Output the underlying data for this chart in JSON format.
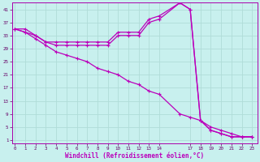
{
  "xlabel": "Windchill (Refroidissement éolien,°C)",
  "background_color": "#c8f0ee",
  "grid_color": "#b0dcd8",
  "line_color": "#bb00bb",
  "x_ticks": [
    0,
    1,
    2,
    3,
    4,
    5,
    6,
    7,
    8,
    9,
    10,
    11,
    12,
    13,
    14,
    17,
    18,
    19,
    20,
    21,
    22,
    23
  ],
  "y_ticks": [
    1,
    5,
    9,
    13,
    17,
    21,
    25,
    29,
    33,
    37,
    41
  ],
  "xlim": [
    -0.3,
    23.5
  ],
  "ylim": [
    0,
    43
  ],
  "line1_x": [
    0,
    1,
    2,
    3,
    4,
    5,
    6,
    7,
    8,
    9,
    10,
    11,
    12,
    13,
    14,
    16,
    17,
    18,
    19,
    20,
    21,
    22,
    23
  ],
  "line1_y": [
    35,
    35,
    33,
    31,
    31,
    31,
    31,
    31,
    31,
    31,
    34,
    34,
    34,
    38,
    39,
    43,
    41,
    7,
    4,
    3,
    2,
    2,
    2
  ],
  "line2_x": [
    0,
    1,
    2,
    3,
    4,
    5,
    6,
    7,
    8,
    9,
    10,
    11,
    12,
    13,
    14,
    16,
    17,
    18,
    19,
    20,
    21,
    22,
    23
  ],
  "line2_y": [
    35,
    34,
    33,
    31,
    30,
    30,
    30,
    30,
    30,
    30,
    33,
    33,
    33,
    37,
    38,
    43,
    41,
    7,
    4,
    3,
    2,
    2,
    2
  ],
  "line3_x": [
    0,
    1,
    2,
    3,
    4,
    5,
    6,
    7,
    8,
    9,
    10,
    11,
    12,
    13,
    14,
    16,
    17,
    18,
    19,
    20,
    21,
    22,
    23
  ],
  "line3_y": [
    35,
    34,
    32,
    30,
    28,
    27,
    26,
    25,
    23,
    22,
    21,
    19,
    18,
    16,
    15,
    9,
    8,
    7,
    5,
    4,
    3,
    2,
    2
  ]
}
